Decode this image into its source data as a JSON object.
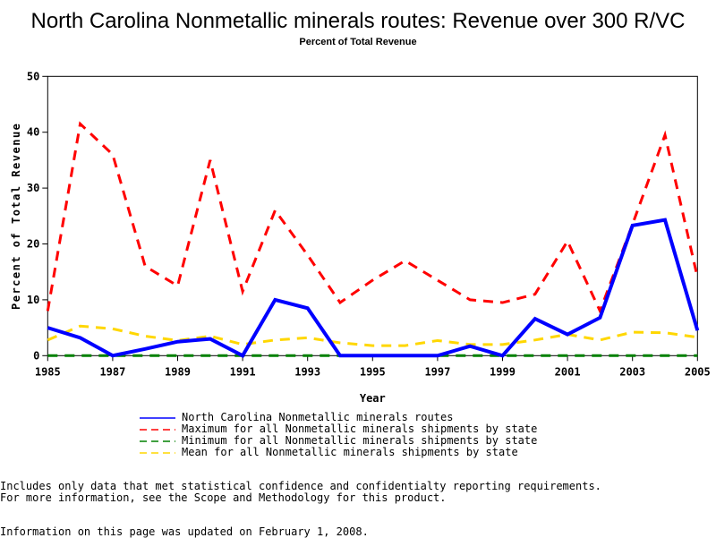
{
  "chart_data": {
    "type": "line",
    "title": "North Carolina Nonmetallic minerals routes: Revenue over 300 R/VC",
    "subtitle": "Percent of Total Revenue",
    "xlabel": "Year",
    "ylabel": "Percent of Total Revenue",
    "xlim": [
      1985,
      2005
    ],
    "ylim": [
      0,
      50
    ],
    "x_ticks": [
      "1985",
      "1987",
      "1989",
      "1991",
      "1993",
      "1995",
      "1997",
      "1999",
      "2001",
      "2003",
      "2005"
    ],
    "y_ticks": [
      "0",
      "10",
      "20",
      "30",
      "40",
      "50"
    ],
    "grid": false,
    "legend_position": "bottom",
    "x": [
      1985,
      1986,
      1987,
      1988,
      1989,
      1990,
      1991,
      1992,
      1993,
      1994,
      1995,
      1996,
      1997,
      1998,
      1999,
      2000,
      2001,
      2002,
      2003,
      2004,
      2005
    ],
    "series": [
      {
        "name": "North Carolina Nonmetallic minerals routes",
        "color": "#0000ff",
        "style": "solid",
        "values": [
          5,
          3.2,
          0,
          1.2,
          2.5,
          3,
          0,
          10,
          8.5,
          0,
          0,
          0,
          0,
          1.7,
          0,
          6.6,
          3.8,
          6.8,
          23.3,
          24.3,
          4.5
        ]
      },
      {
        "name": "Maximum for all Nonmetallic minerals shipments by state",
        "color": "#ff0000",
        "style": "dashed",
        "values": [
          8,
          41.5,
          36,
          16,
          12.5,
          35,
          11.5,
          26,
          18,
          9.5,
          13.5,
          17,
          13.5,
          10,
          9.5,
          11,
          20.5,
          8,
          23.5,
          39.5,
          14
        ]
      },
      {
        "name": "Minimum for all Nonmetallic minerals shipments by state",
        "color": "#008000",
        "style": "dashed",
        "values": [
          0,
          0,
          0,
          0,
          0,
          0,
          0,
          0,
          0,
          0,
          0,
          0,
          0,
          0,
          0,
          0,
          0,
          0,
          0,
          0,
          0
        ]
      },
      {
        "name": "Mean for all Nonmetallic minerals shipments by state",
        "color": "#ffd700",
        "style": "dashed",
        "values": [
          2.8,
          5.3,
          4.8,
          3.5,
          2.7,
          3.5,
          2,
          2.8,
          3.2,
          2.3,
          1.8,
          1.8,
          2.7,
          2,
          2,
          2.8,
          3.8,
          2.8,
          4.2,
          4.1,
          3.3
        ]
      }
    ]
  },
  "footer": {
    "note1": "Includes only data that met statistical confidence and confidentialty reporting requirements.",
    "note2": "For more information, see the Scope and Methodology for this product.",
    "updated": "Information on this page was updated on February 1, 2008."
  }
}
